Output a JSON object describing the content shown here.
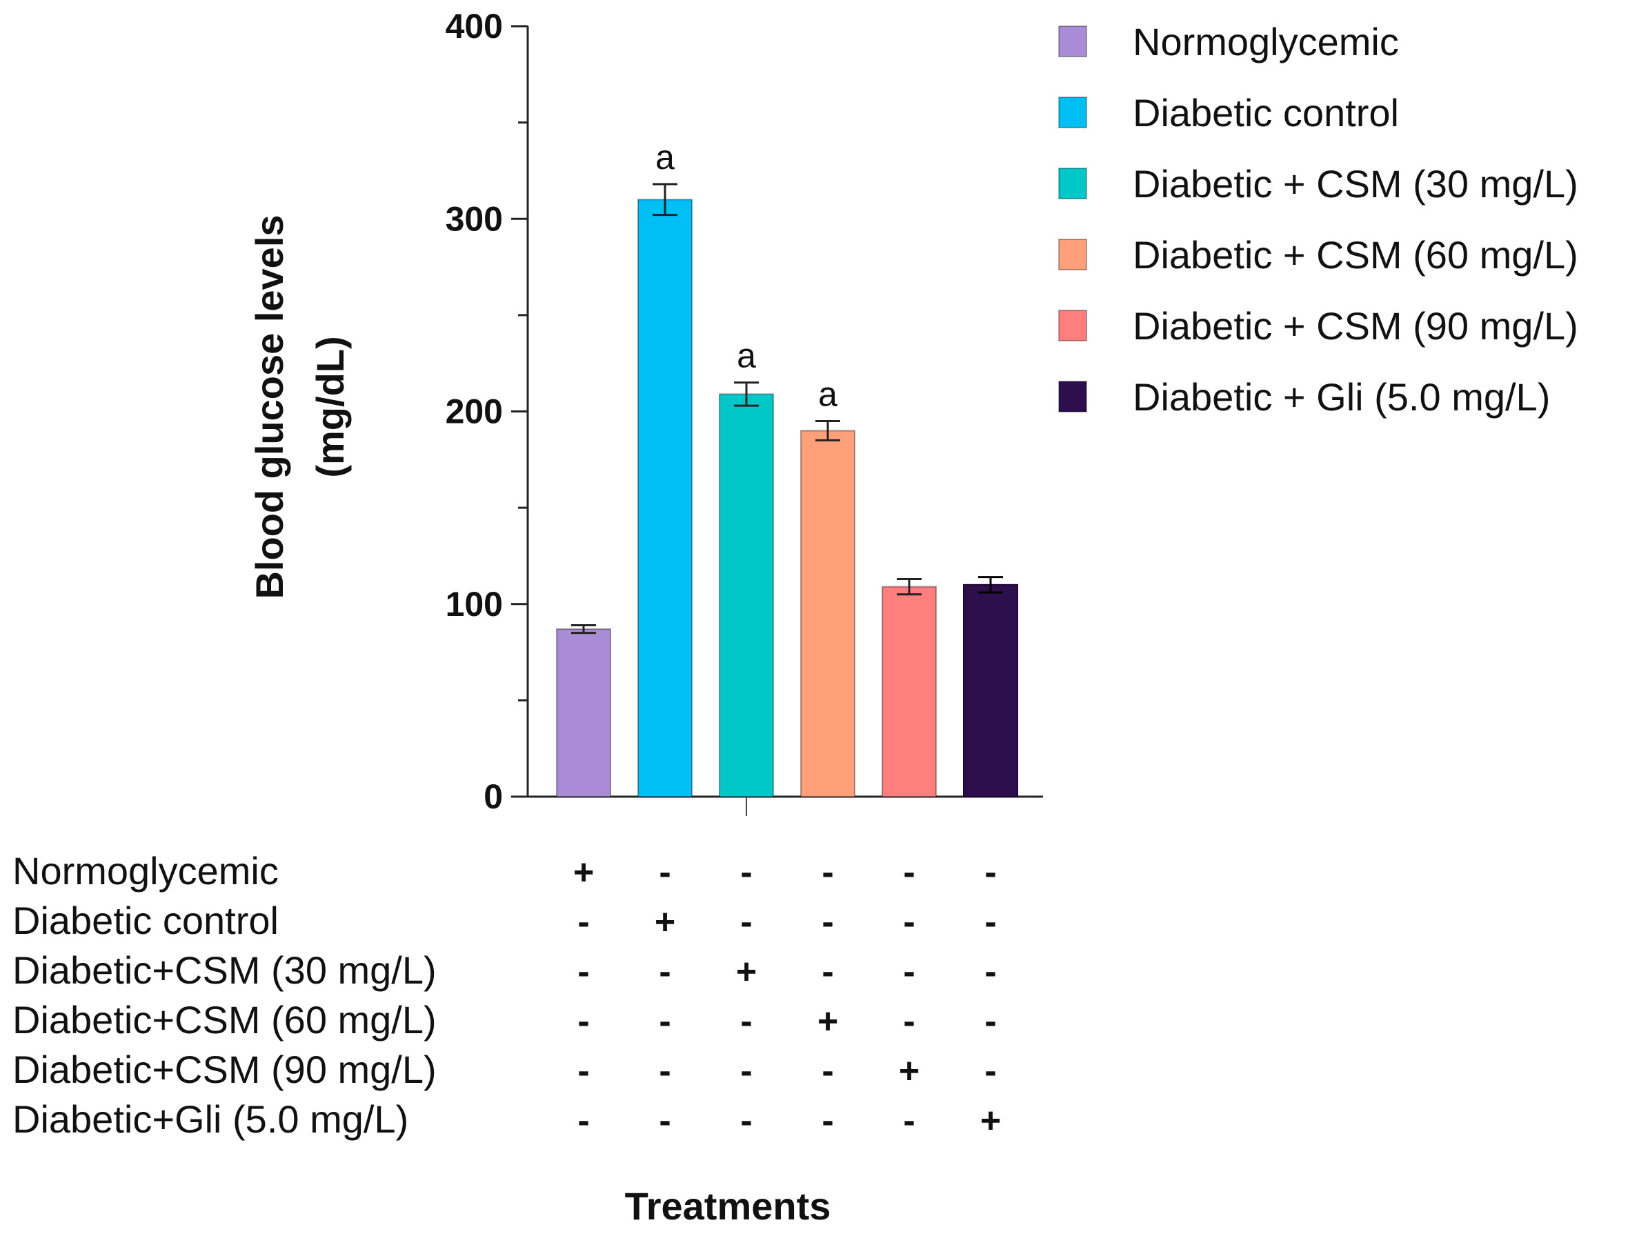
{
  "chart_data": {
    "type": "bar",
    "categories": [
      "Normoglycemic",
      "Diabetic control",
      "Diabetic + CSM (30 mg/L)",
      "Diabetic + CSM (60 mg/L)",
      "Diabetic + CSM (90 mg/L)",
      "Diabetic + Gli (5.0 mg/L)"
    ],
    "values": [
      87,
      310,
      209,
      190,
      109,
      110
    ],
    "errors": [
      2,
      8,
      6,
      5,
      4,
      4
    ],
    "significance": [
      "",
      "a",
      "a",
      "a",
      "",
      ""
    ],
    "colors": [
      "#a98bd6",
      "#00bff5",
      "#00c8c8",
      "#ffa07a",
      "#ff7f7f",
      "#2e0f4e"
    ],
    "xlabel": "Treatments",
    "ylabel": "Blood glucose levels",
    "ylabel_unit": "(mg/dL)",
    "ylim": [
      0,
      400
    ],
    "yticks": [
      0,
      100,
      200,
      300,
      400
    ],
    "legend_placement": "top-right",
    "legend": [
      "Normoglycemic",
      "Diabetic control",
      "Diabetic + CSM (30 mg/L)",
      "Diabetic + CSM (60 mg/L)",
      "Diabetic + CSM (90 mg/L)",
      "Diabetic + Gli (5.0 mg/L)"
    ],
    "treatment_table": {
      "row_labels": [
        "Normoglycemic",
        "Diabetic control",
        "Diabetic+CSM (30 mg/L)",
        "Diabetic+CSM (60 mg/L)",
        "Diabetic+CSM (90 mg/L)",
        "Diabetic+Gli (5.0 mg/L)"
      ],
      "rows": [
        [
          "+",
          "-",
          "-",
          "-",
          "-",
          "-"
        ],
        [
          "-",
          "+",
          "-",
          "-",
          "-",
          "-"
        ],
        [
          "-",
          "-",
          "+",
          "-",
          "-",
          "-"
        ],
        [
          "-",
          "-",
          "-",
          "+",
          "-",
          "-"
        ],
        [
          "-",
          "-",
          "-",
          "-",
          "+",
          "-"
        ],
        [
          "-",
          "-",
          "-",
          "-",
          "-",
          "+"
        ]
      ]
    }
  }
}
